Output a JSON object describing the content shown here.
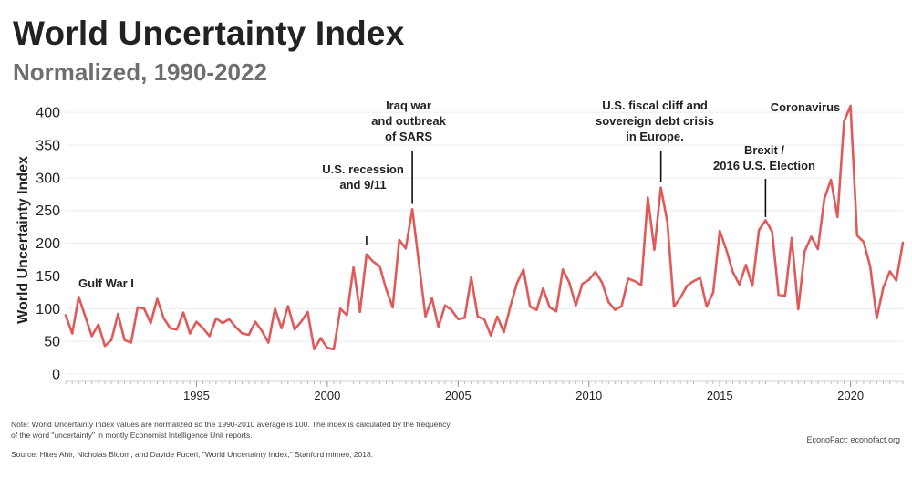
{
  "title": "World Uncertainty Index",
  "subtitle": "Normalized, 1990-2022",
  "note": "Note: World Uncertainty Index values are normalized so the 1990-2010 average is 100. The index is calculated by the frequency of the word \"uncertainty\" in montly Economist Intelligence Unit reports.",
  "source": "Source: Hites Ahir, Nicholas Bloom, and Davide Fuceri, \"World Uncertainty Index,\" Stanford mimeo, 2018.",
  "credit": "EconoFact: econofact.org",
  "colors": {
    "line": "#e05a5a",
    "grid": "#ececec",
    "axis": "#cfcfcf",
    "text": "#222222"
  },
  "chart_data": {
    "type": "line",
    "title": "World Uncertainty Index",
    "subtitle": "Normalized, 1990-2022",
    "xlabel": "",
    "ylabel": "World Uncertainty Index",
    "xlim": [
      1990.0,
      2022.0
    ],
    "ylim": [
      0,
      410
    ],
    "yticks": [
      0,
      50,
      100,
      150,
      200,
      250,
      300,
      350,
      400
    ],
    "xticks": [
      1995,
      2000,
      2005,
      2010,
      2015,
      2020
    ],
    "grid": true,
    "series": [
      {
        "name": "World Uncertainty Index",
        "x": [
          1990.0,
          1990.25,
          1990.5,
          1990.75,
          1991.0,
          1991.25,
          1991.5,
          1991.75,
          1992.0,
          1992.25,
          1992.5,
          1992.75,
          1993.0,
          1993.25,
          1993.5,
          1993.75,
          1994.0,
          1994.25,
          1994.5,
          1994.75,
          1995.0,
          1995.25,
          1995.5,
          1995.75,
          1996.0,
          1996.25,
          1996.5,
          1996.75,
          1997.0,
          1997.25,
          1997.5,
          1997.75,
          1998.0,
          1998.25,
          1998.5,
          1998.75,
          1999.0,
          1999.25,
          1999.5,
          1999.75,
          2000.0,
          2000.25,
          2000.5,
          2000.75,
          2001.0,
          2001.25,
          2001.5,
          2001.75,
          2002.0,
          2002.25,
          2002.5,
          2002.75,
          2003.0,
          2003.25,
          2003.5,
          2003.75,
          2004.0,
          2004.25,
          2004.5,
          2004.75,
          2005.0,
          2005.25,
          2005.5,
          2005.75,
          2006.0,
          2006.25,
          2006.5,
          2006.75,
          2007.0,
          2007.25,
          2007.5,
          2007.75,
          2008.0,
          2008.25,
          2008.5,
          2008.75,
          2009.0,
          2009.25,
          2009.5,
          2009.75,
          2010.0,
          2010.25,
          2010.5,
          2010.75,
          2011.0,
          2011.25,
          2011.5,
          2011.75,
          2012.0,
          2012.25,
          2012.5,
          2012.75,
          2013.0,
          2013.25,
          2013.5,
          2013.75,
          2014.0,
          2014.25,
          2014.5,
          2014.75,
          2015.0,
          2015.25,
          2015.5,
          2015.75,
          2016.0,
          2016.25,
          2016.5,
          2016.75,
          2017.0,
          2017.25,
          2017.5,
          2017.75,
          2018.0,
          2018.25,
          2018.5,
          2018.75,
          2019.0,
          2019.25,
          2019.5,
          2019.75,
          2020.0,
          2020.25,
          2020.5,
          2020.75,
          2021.0,
          2021.25,
          2021.5,
          2021.75,
          2022.0
        ],
        "values": [
          90,
          62,
          118,
          88,
          58,
          76,
          43,
          52,
          92,
          52,
          48,
          102,
          100,
          78,
          115,
          85,
          70,
          68,
          94,
          62,
          80,
          70,
          58,
          85,
          78,
          84,
          72,
          62,
          60,
          80,
          66,
          48,
          100,
          70,
          104,
          68,
          80,
          95,
          38,
          55,
          40,
          38,
          100,
          90,
          163,
          95,
          183,
          172,
          165,
          130,
          102,
          205,
          192,
          252,
          170,
          88,
          116,
          72,
          105,
          98,
          84,
          86,
          148,
          88,
          84,
          59,
          88,
          64,
          104,
          139,
          160,
          103,
          98,
          131,
          102,
          96,
          160,
          140,
          105,
          138,
          144,
          156,
          140,
          110,
          98,
          104,
          146,
          142,
          136,
          270,
          190,
          285,
          232,
          103,
          117,
          135,
          142,
          147,
          103,
          125,
          219,
          190,
          156,
          137,
          167,
          135,
          220,
          235,
          218,
          121,
          120,
          208,
          99,
          188,
          210,
          191,
          268,
          297,
          240,
          386,
          410,
          212,
          202,
          165,
          85,
          132,
          157,
          143,
          201
        ]
      }
    ],
    "annotations": [
      {
        "label": "Gulf War I",
        "x": 1990.5,
        "y": 155,
        "pointer": false
      },
      {
        "label": "U.S. recession\nand 9/11",
        "x": 2001.5,
        "y": 197,
        "pointer": true
      },
      {
        "label": "Iraq war\nand outbreak\nof SARS",
        "x": 2003.25,
        "y": 260,
        "pointer": true
      },
      {
        "label": "U.S. fiscal cliff and\nsovereign debt crisis\nin Europe.",
        "x": 2012.75,
        "y": 293,
        "pointer": true
      },
      {
        "label": "Brexit /\n2016 U.S. Election",
        "x": 2016.75,
        "y": 240,
        "pointer": true
      },
      {
        "label": "Coronavirus",
        "x": 2019.7,
        "y": 408,
        "pointer": false
      }
    ]
  }
}
